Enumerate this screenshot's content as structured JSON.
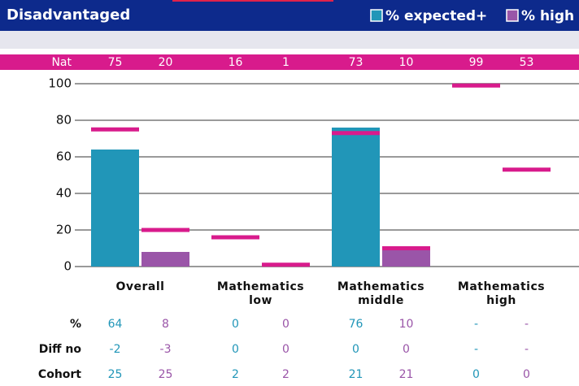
{
  "chart_data": {
    "type": "bar",
    "title": "Disadvantaged",
    "categories": [
      "Overall",
      "Mathematics low",
      "Mathematics middle",
      "Mathematics high"
    ],
    "series": [
      {
        "name": "% expected+",
        "color": "#2196b8",
        "values": [
          64,
          0,
          76,
          null
        ],
        "value_labels": [
          "64",
          "0",
          "76",
          "-"
        ]
      },
      {
        "name": "% high",
        "color": "#9a55a8",
        "values": [
          8,
          0,
          10,
          null
        ],
        "value_labels": [
          "8",
          "0",
          "10",
          "-"
        ]
      }
    ],
    "national": {
      "label": "Nat",
      "color": "#d81b8c",
      "values": [
        75,
        20,
        16,
        1,
        73,
        10,
        99,
        53
      ]
    },
    "ylim": [
      0,
      100
    ],
    "yticks": [
      0,
      20,
      40,
      60,
      80,
      100
    ],
    "grid": true,
    "table": {
      "value_row_label": "%",
      "rows": [
        {
          "label": "Diff no",
          "values": [
            -2,
            -3,
            0,
            0,
            0,
            0,
            "-",
            "-"
          ]
        },
        {
          "label": "Cohort",
          "values": [
            25,
            25,
            2,
            2,
            21,
            21,
            0,
            0
          ]
        }
      ]
    }
  }
}
